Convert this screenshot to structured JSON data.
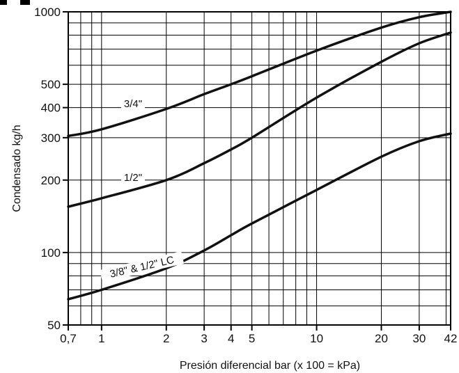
{
  "chart_data": {
    "type": "line",
    "title": "",
    "xlabel": "Presión diferencial bar (x 100 = kPa)",
    "ylabel": "Condensado kg/h",
    "x_scale": "log",
    "y_scale": "log",
    "xlim": [
      0.7,
      42
    ],
    "ylim": [
      50,
      1000
    ],
    "grid": true,
    "legend": "none",
    "x_ticks": [
      {
        "value": 0.7,
        "label": "0,7"
      },
      {
        "value": 1,
        "label": "1"
      },
      {
        "value": 2,
        "label": "2"
      },
      {
        "value": 3,
        "label": "3"
      },
      {
        "value": 4,
        "label": "4"
      },
      {
        "value": 5,
        "label": "5"
      },
      {
        "value": 10,
        "label": "10"
      },
      {
        "value": 20,
        "label": "20"
      },
      {
        "value": 30,
        "label": "30"
      },
      {
        "value": 42,
        "label": "42"
      }
    ],
    "y_ticks": [
      {
        "value": 50,
        "label": "50"
      },
      {
        "value": 100,
        "label": "100"
      },
      {
        "value": 200,
        "label": "200"
      },
      {
        "value": 300,
        "label": "300"
      },
      {
        "value": 400,
        "label": "400"
      },
      {
        "value": 500,
        "label": "500"
      },
      {
        "value": 1000,
        "label": "1000"
      }
    ],
    "series": [
      {
        "name": "3/4\"",
        "label_at": [
          1.4,
          405
        ],
        "x": [
          0.7,
          1,
          2,
          3,
          4,
          5,
          10,
          20,
          30,
          42
        ],
        "y": [
          305,
          325,
          395,
          455,
          500,
          540,
          690,
          860,
          950,
          1000
        ]
      },
      {
        "name": "1/2\"",
        "label_at": [
          1.4,
          200
        ],
        "x": [
          0.7,
          1,
          2,
          3,
          4,
          5,
          10,
          20,
          30,
          42
        ],
        "y": [
          155,
          168,
          200,
          235,
          268,
          300,
          440,
          620,
          740,
          820
        ]
      },
      {
        "name": "3/8\" & 1/2\" LC",
        "label_at": [
          1.55,
          85
        ],
        "x": [
          0.7,
          1,
          2,
          3,
          4,
          5,
          10,
          20,
          30,
          42
        ],
        "y": [
          64,
          70,
          86,
          102,
          118,
          132,
          182,
          250,
          290,
          312
        ]
      }
    ]
  }
}
